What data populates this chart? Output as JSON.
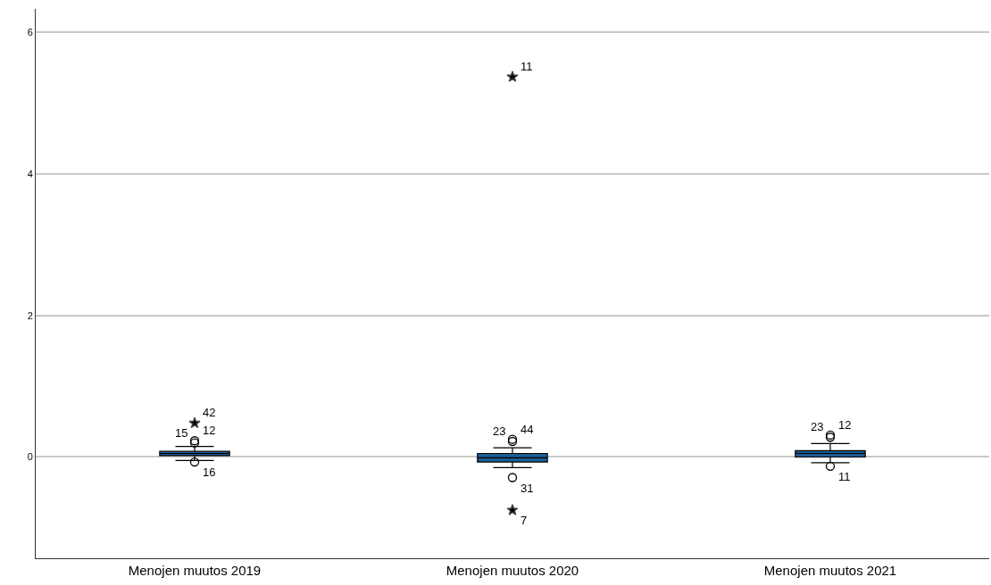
{
  "chart_data": {
    "type": "box",
    "categories": [
      "Menojen muutos 2019",
      "Menojen muutos 2020",
      "Menojen muutos 2021"
    ],
    "series": [
      {
        "color": "#1f5c94",
        "boxes": [
          {
            "low": -0.05,
            "q1": 0.02,
            "median": 0.05,
            "q3": 0.08,
            "high": 0.15
          },
          {
            "low": -0.15,
            "q1": -0.07,
            "median": -0.01,
            "q3": 0.05,
            "high": 0.13
          },
          {
            "low": -0.08,
            "q1": 0.0,
            "median": 0.05,
            "q3": 0.09,
            "high": 0.19
          }
        ]
      },
      {
        "type": "scatter",
        "marker": "circle",
        "color": "#000000",
        "x": [
          "Menojen muutos 2019",
          "Menojen muutos 2019",
          "Menojen muutos 2019",
          "Menojen muutos 2020",
          "Menojen muutos 2020",
          "Menojen muutos 2020",
          "Menojen muutos 2021",
          "Menojen muutos 2021",
          "Menojen muutos 2021"
        ],
        "values": [
          0.23,
          0.2,
          -0.07,
          0.25,
          0.22,
          -0.29,
          0.31,
          0.28,
          -0.13
        ]
      },
      {
        "type": "scatter",
        "marker": "star",
        "color": "#000000",
        "x": [
          "Menojen muutos 2019",
          "Menojen muutos 2020",
          "Menojen muutos 2020"
        ],
        "values": [
          0.48,
          5.37,
          -0.75
        ]
      }
    ],
    "annotations": [
      {
        "text": "42",
        "x": "Menojen muutos 2019",
        "y": 0.48
      },
      {
        "text": "12",
        "x": "Menojen muutos 2019",
        "y": 0.23
      },
      {
        "text": "15",
        "x": "Menojen muutos 2019",
        "y": 0.2
      },
      {
        "text": "16",
        "x": "Menojen muutos 2019",
        "y": -0.07
      },
      {
        "text": "11",
        "x": "Menojen muutos 2020",
        "y": 5.37
      },
      {
        "text": "44",
        "x": "Menojen muutos 2020",
        "y": 0.25
      },
      {
        "text": "23",
        "x": "Menojen muutos 2020",
        "y": 0.22
      },
      {
        "text": "31",
        "x": "Menojen muutos 2020",
        "y": -0.29
      },
      {
        "text": "7",
        "x": "Menojen muutos 2020",
        "y": -0.75
      },
      {
        "text": "12",
        "x": "Menojen muutos 2021",
        "y": 0.31
      },
      {
        "text": "23",
        "x": "Menojen muutos 2021",
        "y": 0.28
      },
      {
        "text": "11",
        "x": "Menojen muutos 2021",
        "y": -0.13
      }
    ],
    "ylim": [
      -1.43,
      6.33
    ],
    "yticks": [
      0,
      2,
      4,
      6
    ],
    "grid": "y"
  }
}
